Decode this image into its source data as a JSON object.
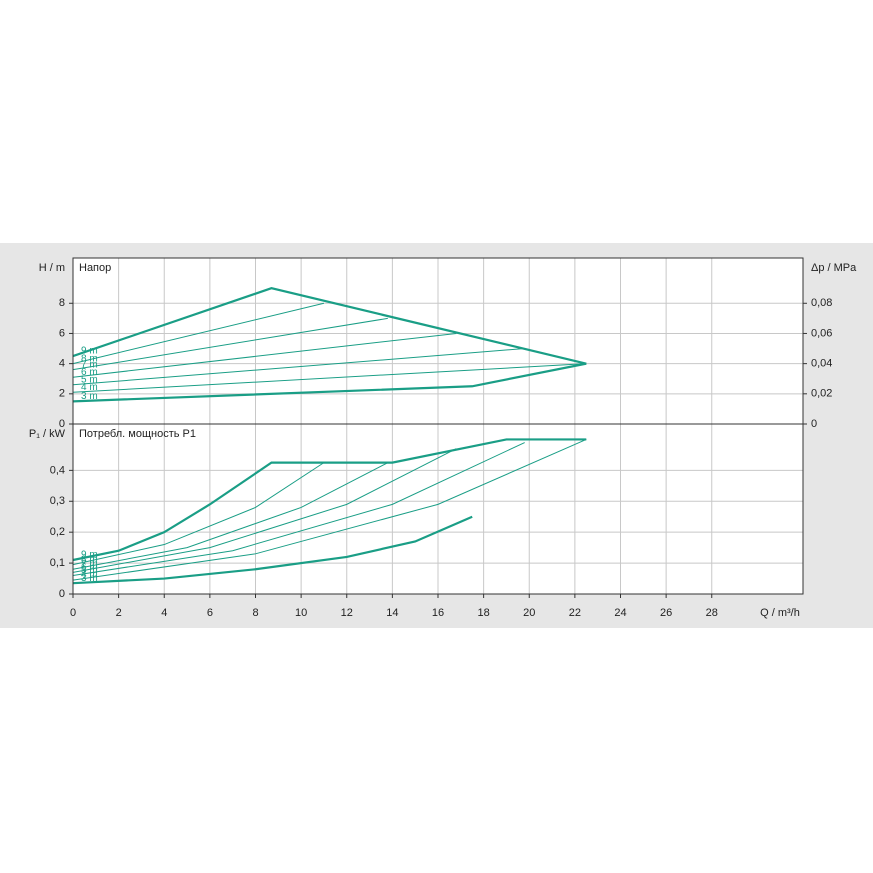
{
  "chart_data": [
    {
      "type": "line",
      "title": "Напор",
      "y_label": "H / m",
      "y2_label": "Δp / MPa",
      "xlim": [
        0,
        32
      ],
      "xticks": [
        0,
        2,
        4,
        6,
        8,
        10,
        12,
        14,
        16,
        18,
        20,
        22,
        24,
        26,
        28
      ],
      "ylim": [
        0,
        11
      ],
      "yticks": [
        0,
        2,
        4,
        6,
        8
      ],
      "y2lim": [
        0,
        0.11
      ],
      "y2ticks": [
        0,
        {
          "value": 0.02,
          "label": "0,02"
        },
        {
          "value": 0.04,
          "label": "0,04"
        },
        {
          "value": 0.06,
          "label": "0,06"
        },
        {
          "value": 0.08,
          "label": "0,08"
        }
      ],
      "grid": true,
      "series": [
        {
          "name": "9 m",
          "color": "#1a9e86",
          "line_width": 2.2,
          "x": [
            0,
            8.7,
            22.5
          ],
          "values": [
            4.5,
            9,
            4
          ]
        },
        {
          "name": "8 m",
          "color": "#1a9e86",
          "line_width": 1,
          "x": [
            0,
            11
          ],
          "values": [
            4.0,
            8
          ]
        },
        {
          "name": "7 m",
          "color": "#1a9e86",
          "line_width": 1,
          "x": [
            0,
            13.8
          ],
          "values": [
            3.6,
            7
          ]
        },
        {
          "name": "6 m",
          "color": "#1a9e86",
          "line_width": 1,
          "x": [
            0,
            16.8
          ],
          "values": [
            3.1,
            6
          ]
        },
        {
          "name": "5 m",
          "color": "#1a9e86",
          "line_width": 1,
          "x": [
            0,
            19.8
          ],
          "values": [
            2.6,
            5
          ]
        },
        {
          "name": "4 m",
          "color": "#1a9e86",
          "line_width": 1,
          "x": [
            0,
            22.5
          ],
          "values": [
            2.1,
            4
          ]
        },
        {
          "name": "3 m",
          "color": "#1a9e86",
          "line_width": 2.2,
          "x": [
            0,
            17.5,
            22.5
          ],
          "values": [
            1.5,
            2.5,
            4
          ]
        }
      ]
    },
    {
      "type": "line",
      "title": "Потребл. мощность P1",
      "y_label": "P₁ / kW",
      "x_label": "Q / m³/h",
      "xlim": [
        0,
        32
      ],
      "xticks": [
        0,
        2,
        4,
        6,
        8,
        10,
        12,
        14,
        16,
        18,
        20,
        22,
        24,
        26,
        28
      ],
      "ylim": [
        0,
        0.55
      ],
      "yticks": [
        0,
        {
          "value": 0.1,
          "label": "0,1"
        },
        {
          "value": 0.2,
          "label": "0,2"
        },
        {
          "value": 0.3,
          "label": "0,3"
        },
        {
          "value": 0.4,
          "label": "0,4"
        }
      ],
      "grid": true,
      "series": [
        {
          "name": "9 m",
          "color": "#1a9e86",
          "line_width": 2.2,
          "x": [
            0,
            2,
            4,
            6,
            8.7,
            14,
            19,
            22.5
          ],
          "values": [
            0.11,
            0.14,
            0.2,
            0.29,
            0.425,
            0.425,
            0.5,
            0.5
          ]
        },
        {
          "name": "8 m",
          "color": "#1a9e86",
          "line_width": 1,
          "x": [
            0,
            4,
            8,
            11
          ],
          "values": [
            0.095,
            0.16,
            0.28,
            0.425
          ]
        },
        {
          "name": "7 m",
          "color": "#1a9e86",
          "line_width": 1,
          "x": [
            0,
            5,
            10,
            13.8
          ],
          "values": [
            0.08,
            0.15,
            0.28,
            0.425
          ]
        },
        {
          "name": "6 m",
          "color": "#1a9e86",
          "line_width": 1,
          "x": [
            0,
            6,
            12,
            16.8
          ],
          "values": [
            0.07,
            0.15,
            0.29,
            0.47
          ]
        },
        {
          "name": "5 m",
          "color": "#1a9e86",
          "line_width": 1,
          "x": [
            0,
            7,
            14,
            19.8
          ],
          "values": [
            0.06,
            0.14,
            0.29,
            0.49
          ]
        },
        {
          "name": "4 m",
          "color": "#1a9e86",
          "line_width": 1,
          "x": [
            0,
            8,
            16,
            22.5
          ],
          "values": [
            0.045,
            0.13,
            0.29,
            0.5
          ]
        },
        {
          "name": "3 m",
          "color": "#1a9e86",
          "line_width": 2.2,
          "x": [
            0,
            4,
            8,
            12,
            15,
            17.5
          ],
          "values": [
            0.035,
            0.05,
            0.08,
            0.12,
            0.17,
            0.25
          ]
        }
      ]
    }
  ]
}
